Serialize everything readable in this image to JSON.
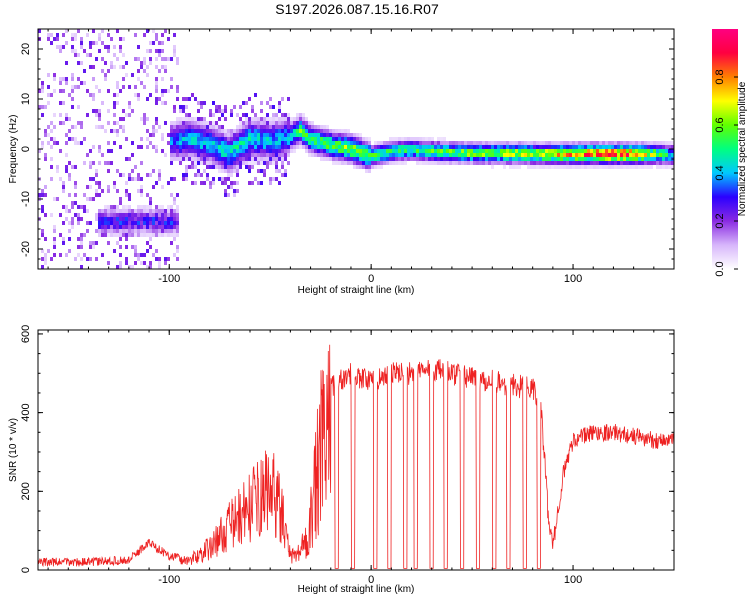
{
  "title": "S197.2026.087.15.16.R07",
  "chart_data": [
    {
      "type": "heatmap",
      "title": "S197.2026.087.15.16.R07",
      "xlabel": "Height of straight line (km)",
      "ylabel": "Frequency (Hz)",
      "xlim": [
        -165,
        150
      ],
      "ylim": [
        -24,
        24
      ],
      "xticks": [
        -100,
        0,
        100
      ],
      "yticks": [
        -20,
        -10,
        0,
        10,
        20
      ],
      "colorbar": {
        "label": "Normalized spectral amplitude",
        "range": [
          0,
          1
        ],
        "ticks": [
          "0.0",
          "0.2",
          "0.4",
          "0.6",
          "0.8"
        ],
        "colormap": [
          "#ffffff",
          "#d7b6fb",
          "#8a2be2",
          "#2b00ff",
          "#00c8ff",
          "#00ff80",
          "#60ff00",
          "#ffff00",
          "#ff7f00",
          "#ff0040",
          "#ff0080"
        ]
      },
      "ridge": {
        "x": [
          -100,
          -90,
          -80,
          -70,
          -60,
          -50,
          -40,
          -35,
          -30,
          -20,
          -10,
          0,
          10,
          20,
          30,
          40,
          50,
          60,
          70,
          80,
          90,
          100,
          110,
          120,
          130,
          140,
          148
        ],
        "f_hz": [
          1.5,
          2.0,
          1.0,
          -1.0,
          2.0,
          1.5,
          2.5,
          3.8,
          2.0,
          0.8,
          0.0,
          -1.5,
          -0.5,
          -0.2,
          -0.5,
          -0.7,
          -0.8,
          -0.9,
          -0.9,
          -1.0,
          -1.0,
          -1.0,
          -1.0,
          -1.0,
          -1.0,
          -1.0,
          -1.2
        ],
        "amplitude": [
          0.35,
          0.4,
          0.4,
          0.45,
          0.45,
          0.4,
          0.4,
          0.55,
          0.5,
          0.55,
          0.6,
          0.55,
          0.55,
          0.5,
          0.55,
          0.55,
          0.6,
          0.6,
          0.65,
          0.65,
          0.7,
          0.75,
          0.8,
          0.85,
          0.8,
          0.6,
          0.45
        ]
      },
      "cluster": {
        "x_range": [
          -135,
          -95
        ],
        "f_hz": -14.5,
        "amplitude": 0.3
      }
    },
    {
      "type": "line",
      "xlabel": "Height of straight line (km)",
      "ylabel": "SNR (10 * v/v)",
      "xlim": [
        -165,
        150
      ],
      "ylim": [
        0,
        610
      ],
      "xticks": [
        -100,
        0,
        100
      ],
      "yticks": [
        0,
        200,
        400,
        600
      ],
      "color": "#ee2222",
      "envelope": {
        "x": [
          -165,
          -140,
          -120,
          -110,
          -100,
          -90,
          -80,
          -70,
          -60,
          -50,
          -45,
          -40,
          -35,
          -30,
          -25,
          -20,
          -15,
          -10,
          -5,
          0,
          10,
          20,
          30,
          40,
          50,
          60,
          70,
          80,
          84,
          88,
          90,
          95,
          100,
          110,
          120,
          130,
          140,
          150
        ],
        "snr": [
          20,
          20,
          25,
          70,
          35,
          30,
          70,
          140,
          200,
          260,
          200,
          40,
          60,
          160,
          390,
          470,
          480,
          500,
          490,
          480,
          500,
          500,
          510,
          500,
          490,
          480,
          470,
          460,
          420,
          120,
          60,
          240,
          330,
          350,
          350,
          340,
          330,
          330
        ]
      },
      "dropouts_x": [
        -17,
        -9,
        2,
        9,
        17,
        22,
        30,
        37,
        45,
        53,
        61,
        68,
        76,
        83
      ]
    }
  ]
}
